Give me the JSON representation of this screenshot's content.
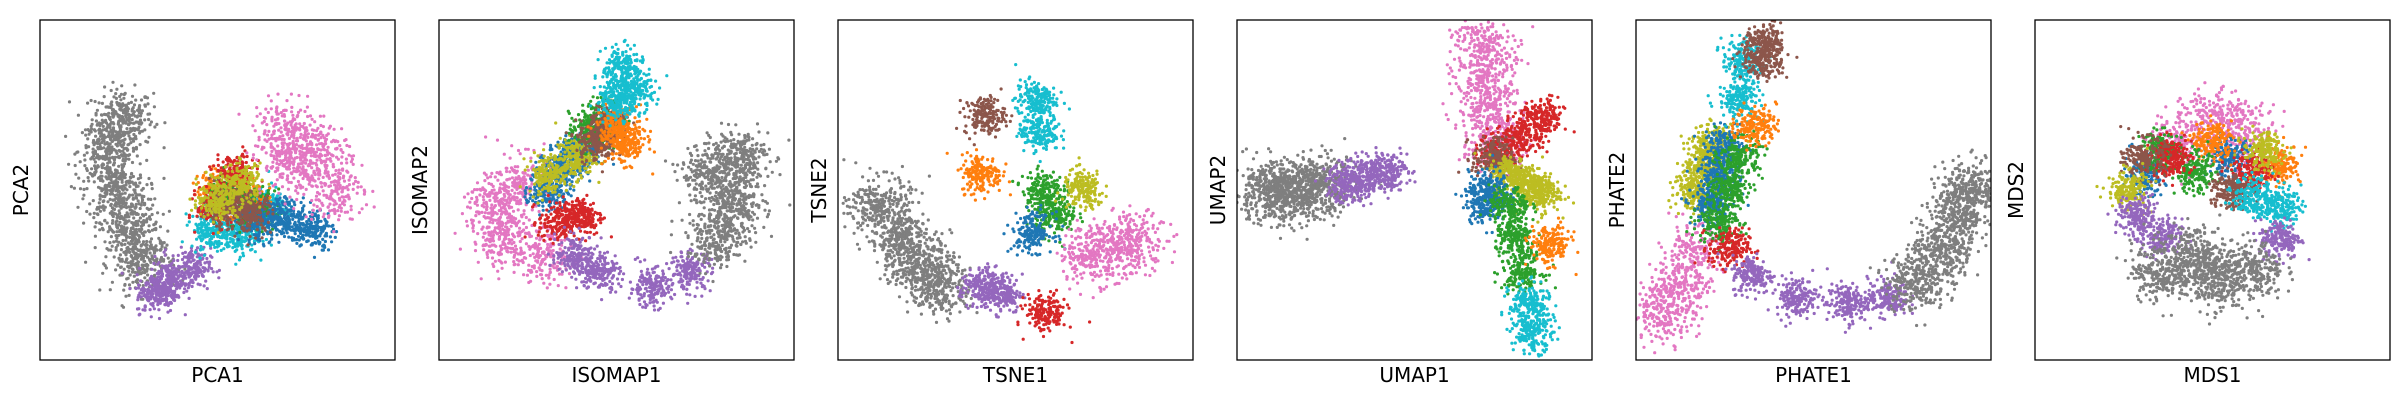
{
  "colors": {
    "blue": "#1f77b4",
    "orange": "#ff7f0e",
    "green": "#2ca02c",
    "red": "#d62728",
    "purple": "#9467bd",
    "brown": "#8c564b",
    "pink": "#e377c2",
    "gray": "#7f7f7f",
    "olive": "#bcbd22",
    "cyan": "#17becf"
  },
  "chart_data": [
    {
      "type": "scatter",
      "xlabel": "PCA1",
      "ylabel": "PCA2",
      "grid": false,
      "ticks": false,
      "xlim": [
        0,
        1
      ],
      "ylim": [
        0,
        1
      ],
      "clusters": [
        {
          "color": "gray",
          "points": [
            [
              0.22,
              0.72
            ],
            [
              0.18,
              0.62
            ],
            [
              0.2,
              0.5
            ],
            [
              0.24,
              0.38
            ],
            [
              0.28,
              0.27
            ]
          ]
        },
        {
          "color": "purple",
          "points": [
            [
              0.36,
              0.22
            ],
            [
              0.42,
              0.26
            ],
            [
              0.32,
              0.18
            ]
          ]
        },
        {
          "color": "cyan",
          "points": [
            [
              0.48,
              0.38
            ],
            [
              0.56,
              0.36
            ],
            [
              0.64,
              0.45
            ]
          ]
        },
        {
          "color": "orange",
          "points": [
            [
              0.5,
              0.5
            ],
            [
              0.58,
              0.48
            ]
          ]
        },
        {
          "color": "green",
          "points": [
            [
              0.53,
              0.47
            ],
            [
              0.61,
              0.44
            ]
          ]
        },
        {
          "color": "red",
          "points": [
            [
              0.55,
              0.55
            ],
            [
              0.5,
              0.45
            ]
          ]
        },
        {
          "color": "blue",
          "points": [
            [
              0.62,
              0.4
            ],
            [
              0.7,
              0.42
            ],
            [
              0.78,
              0.38
            ]
          ]
        },
        {
          "color": "brown",
          "points": [
            [
              0.52,
              0.45
            ],
            [
              0.6,
              0.43
            ]
          ]
        },
        {
          "color": "olive",
          "points": [
            [
              0.5,
              0.47
            ],
            [
              0.57,
              0.52
            ]
          ]
        },
        {
          "color": "pink",
          "points": [
            [
              0.72,
              0.58
            ],
            [
              0.8,
              0.62
            ],
            [
              0.7,
              0.68
            ],
            [
              0.84,
              0.5
            ]
          ]
        }
      ]
    },
    {
      "type": "scatter",
      "xlabel": "ISOMAP1",
      "ylabel": "ISOMAP2",
      "grid": false,
      "ticks": false,
      "xlim": [
        0,
        1
      ],
      "ylim": [
        0,
        1
      ],
      "clusters": [
        {
          "color": "pink",
          "points": [
            [
              0.14,
              0.45
            ],
            [
              0.22,
              0.52
            ],
            [
              0.16,
              0.35
            ],
            [
              0.28,
              0.3
            ]
          ]
        },
        {
          "color": "blue",
          "points": [
            [
              0.3,
              0.5
            ],
            [
              0.35,
              0.58
            ],
            [
              0.4,
              0.62
            ]
          ]
        },
        {
          "color": "red",
          "points": [
            [
              0.33,
              0.4
            ],
            [
              0.4,
              0.42
            ]
          ]
        },
        {
          "color": "olive",
          "points": [
            [
              0.3,
              0.55
            ],
            [
              0.38,
              0.6
            ]
          ]
        },
        {
          "color": "green",
          "points": [
            [
              0.42,
              0.68
            ],
            [
              0.46,
              0.72
            ]
          ]
        },
        {
          "color": "brown",
          "points": [
            [
              0.44,
              0.65
            ],
            [
              0.48,
              0.7
            ]
          ]
        },
        {
          "color": "orange",
          "points": [
            [
              0.5,
              0.7
            ],
            [
              0.53,
              0.64
            ]
          ]
        },
        {
          "color": "cyan",
          "points": [
            [
              0.52,
              0.88
            ],
            [
              0.55,
              0.8
            ],
            [
              0.5,
              0.78
            ]
          ]
        },
        {
          "color": "purple",
          "points": [
            [
              0.45,
              0.25
            ],
            [
              0.6,
              0.2
            ],
            [
              0.72,
              0.25
            ],
            [
              0.38,
              0.3
            ]
          ]
        },
        {
          "color": "gray",
          "points": [
            [
              0.78,
              0.55
            ],
            [
              0.85,
              0.45
            ],
            [
              0.8,
              0.35
            ],
            [
              0.86,
              0.6
            ]
          ]
        }
      ]
    },
    {
      "type": "scatter",
      "xlabel": "TSNE1",
      "ylabel": "TSNE2",
      "grid": false,
      "ticks": false,
      "xlim": [
        0,
        1
      ],
      "ylim": [
        0,
        1
      ],
      "clusters": [
        {
          "color": "gray",
          "points": [
            [
              0.1,
              0.45
            ],
            [
              0.16,
              0.35
            ],
            [
              0.22,
              0.27
            ],
            [
              0.28,
              0.2
            ]
          ]
        },
        {
          "color": "purple",
          "points": [
            [
              0.4,
              0.2
            ],
            [
              0.46,
              0.18
            ]
          ]
        },
        {
          "color": "orange",
          "points": [
            [
              0.4,
              0.55
            ]
          ]
        },
        {
          "color": "brown",
          "points": [
            [
              0.41,
              0.73
            ]
          ]
        },
        {
          "color": "cyan",
          "points": [
            [
              0.56,
              0.78
            ],
            [
              0.57,
              0.68
            ]
          ]
        },
        {
          "color": "green",
          "points": [
            [
              0.58,
              0.5
            ],
            [
              0.62,
              0.42
            ]
          ]
        },
        {
          "color": "olive",
          "points": [
            [
              0.7,
              0.5
            ]
          ]
        },
        {
          "color": "blue",
          "points": [
            [
              0.55,
              0.37
            ]
          ]
        },
        {
          "color": "red",
          "points": [
            [
              0.59,
              0.12
            ]
          ]
        },
        {
          "color": "pink",
          "points": [
            [
              0.78,
              0.32
            ],
            [
              0.86,
              0.34
            ],
            [
              0.72,
              0.3
            ]
          ]
        }
      ]
    },
    {
      "type": "scatter",
      "xlabel": "UMAP1",
      "ylabel": "UMAP2",
      "grid": false,
      "ticks": false,
      "xlim": [
        0,
        1
      ],
      "ylim": [
        0,
        1
      ],
      "clusters": [
        {
          "color": "gray",
          "points": [
            [
              0.06,
              0.49
            ],
            [
              0.12,
              0.5
            ],
            [
              0.18,
              0.5
            ],
            [
              0.24,
              0.51
            ]
          ]
        },
        {
          "color": "purple",
          "points": [
            [
              0.3,
              0.52
            ],
            [
              0.36,
              0.54
            ],
            [
              0.42,
              0.56
            ]
          ]
        },
        {
          "color": "pink",
          "points": [
            [
              0.7,
              0.95
            ],
            [
              0.71,
              0.85
            ],
            [
              0.72,
              0.75
            ],
            [
              0.73,
              0.64
            ]
          ]
        },
        {
          "color": "red",
          "points": [
            [
              0.75,
              0.62
            ],
            [
              0.82,
              0.67
            ],
            [
              0.88,
              0.72
            ]
          ]
        },
        {
          "color": "brown",
          "points": [
            [
              0.73,
              0.6
            ]
          ]
        },
        {
          "color": "olive",
          "points": [
            [
              0.78,
              0.55
            ],
            [
              0.83,
              0.52
            ],
            [
              0.87,
              0.49
            ]
          ]
        },
        {
          "color": "blue",
          "points": [
            [
              0.72,
              0.5
            ],
            [
              0.71,
              0.46
            ]
          ]
        },
        {
          "color": "green",
          "points": [
            [
              0.78,
              0.45
            ],
            [
              0.8,
              0.35
            ],
            [
              0.82,
              0.25
            ]
          ]
        },
        {
          "color": "orange",
          "points": [
            [
              0.9,
              0.33
            ]
          ]
        },
        {
          "color": "cyan",
          "points": [
            [
              0.84,
              0.15
            ],
            [
              0.85,
              0.06
            ]
          ]
        }
      ]
    },
    {
      "type": "scatter",
      "xlabel": "PHATE1",
      "ylabel": "PHATE2",
      "grid": false,
      "ticks": false,
      "xlim": [
        0,
        1
      ],
      "ylim": [
        0,
        1
      ],
      "clusters": [
        {
          "color": "pink",
          "points": [
            [
              0.06,
              0.12
            ],
            [
              0.1,
              0.2
            ],
            [
              0.14,
              0.3
            ]
          ]
        },
        {
          "color": "olive",
          "points": [
            [
              0.15,
              0.5
            ],
            [
              0.18,
              0.58
            ],
            [
              0.2,
              0.64
            ]
          ]
        },
        {
          "color": "blue",
          "points": [
            [
              0.2,
              0.45
            ],
            [
              0.22,
              0.55
            ],
            [
              0.24,
              0.63
            ]
          ]
        },
        {
          "color": "green",
          "points": [
            [
              0.22,
              0.4
            ],
            [
              0.25,
              0.5
            ],
            [
              0.28,
              0.6
            ]
          ]
        },
        {
          "color": "cyan",
          "points": [
            [
              0.28,
              0.78
            ],
            [
              0.29,
              0.9
            ]
          ]
        },
        {
          "color": "orange",
          "points": [
            [
              0.33,
              0.7
            ]
          ]
        },
        {
          "color": "brown",
          "points": [
            [
              0.35,
              0.9
            ],
            [
              0.36,
              0.95
            ]
          ]
        },
        {
          "color": "red",
          "points": [
            [
              0.25,
              0.32
            ]
          ]
        },
        {
          "color": "purple",
          "points": [
            [
              0.32,
              0.24
            ],
            [
              0.45,
              0.17
            ],
            [
              0.6,
              0.15
            ],
            [
              0.72,
              0.17
            ]
          ]
        },
        {
          "color": "gray",
          "points": [
            [
              0.8,
              0.22
            ],
            [
              0.88,
              0.3
            ],
            [
              0.93,
              0.42
            ],
            [
              0.96,
              0.5
            ]
          ]
        }
      ]
    },
    {
      "type": "scatter",
      "xlabel": "MDS1",
      "ylabel": "MDS2",
      "grid": false,
      "ticks": false,
      "xlim": [
        0,
        1
      ],
      "ylim": [
        0,
        1
      ],
      "clusters": [
        {
          "color": "pink",
          "points": [
            [
              0.5,
              0.72
            ],
            [
              0.6,
              0.68
            ],
            [
              0.4,
              0.65
            ]
          ]
        },
        {
          "color": "blue",
          "points": [
            [
              0.3,
              0.55
            ],
            [
              0.55,
              0.6
            ]
          ]
        },
        {
          "color": "orange",
          "points": [
            [
              0.7,
              0.58
            ],
            [
              0.5,
              0.65
            ]
          ]
        },
        {
          "color": "green",
          "points": [
            [
              0.45,
              0.55
            ],
            [
              0.35,
              0.62
            ]
          ]
        },
        {
          "color": "red",
          "points": [
            [
              0.62,
              0.55
            ],
            [
              0.38,
              0.6
            ]
          ]
        },
        {
          "color": "brown",
          "points": [
            [
              0.55,
              0.5
            ],
            [
              0.3,
              0.6
            ]
          ]
        },
        {
          "color": "olive",
          "points": [
            [
              0.25,
              0.5
            ],
            [
              0.65,
              0.62
            ]
          ]
        },
        {
          "color": "cyan",
          "points": [
            [
              0.7,
              0.45
            ],
            [
              0.62,
              0.48
            ]
          ]
        },
        {
          "color": "purple",
          "points": [
            [
              0.28,
              0.42
            ],
            [
              0.35,
              0.35
            ],
            [
              0.7,
              0.35
            ]
          ]
        },
        {
          "color": "gray",
          "points": [
            [
              0.45,
              0.3
            ],
            [
              0.5,
              0.22
            ],
            [
              0.35,
              0.25
            ],
            [
              0.62,
              0.25
            ]
          ]
        }
      ]
    }
  ]
}
